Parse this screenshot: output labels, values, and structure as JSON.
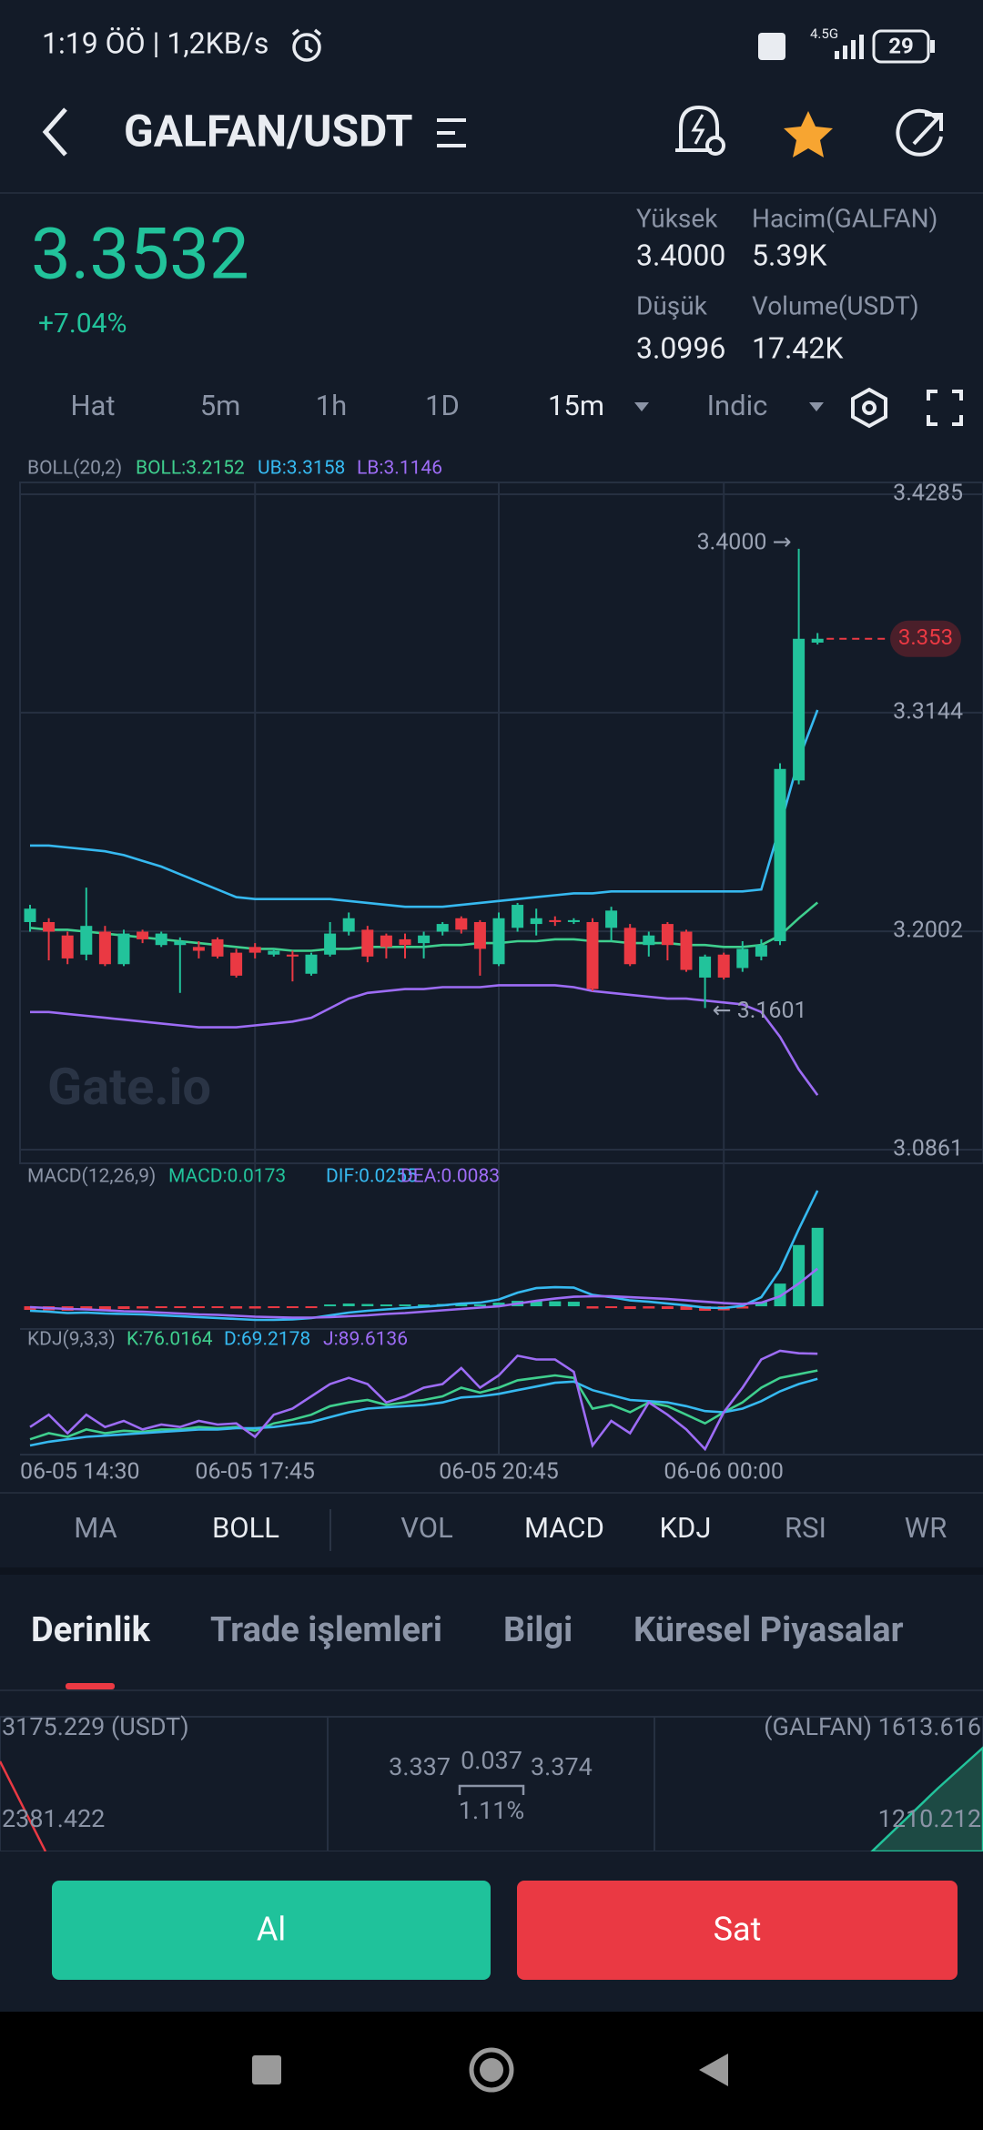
{
  "status_bar": {
    "time": "1:19 ÖÖ | 1,2KB/s",
    "network": "4.5G",
    "battery": "29"
  },
  "header": {
    "pair": "GALFAN/USDT"
  },
  "ticker": {
    "price": "3.3532",
    "change": "+7.04%",
    "high_label": "Yüksek",
    "high": "3.4000",
    "volume_base_label": "Hacim(GALFAN)",
    "volume_base": "5.39K",
    "low_label": "Düşük",
    "low": "3.0996",
    "volume_quote_label": "Volume(USDT)",
    "volume_quote": "17.42K"
  },
  "timeframes": [
    "Hat",
    "5m",
    "1h",
    "1D",
    "15m",
    "Indic"
  ],
  "chart_data": {
    "type": "candlestick",
    "categories": [
      "06-05 14:30",
      null,
      null,
      null,
      null,
      null,
      null,
      null,
      null,
      null,
      null,
      null,
      "06-05 17:45",
      null,
      null,
      null,
      null,
      null,
      null,
      null,
      null,
      null,
      null,
      null,
      null,
      "06-05 20:45",
      null,
      null,
      null,
      null,
      null,
      null,
      null,
      null,
      null,
      null,
      null,
      "06-06 00:00",
      null,
      null,
      null,
      null,
      null
    ],
    "open": [
      3.205,
      3.205,
      3.198,
      3.188,
      3.2,
      3.183,
      3.2,
      3.193,
      3.193,
      3.192,
      3.196,
      3.189,
      3.192,
      3.188,
      3.188,
      3.178,
      3.188,
      3.2,
      3.201,
      3.198,
      3.196,
      3.194,
      3.2,
      3.207,
      3.205,
      3.183,
      3.202,
      3.204,
      3.206,
      3.205,
      3.205,
      3.202,
      3.202,
      3.193,
      3.204,
      3.2,
      3.176,
      3.188,
      3.181,
      3.187,
      3.195,
      3.279,
      3.351
    ],
    "high": [
      3.214,
      3.207,
      3.2,
      3.223,
      3.203,
      3.201,
      3.201,
      3.2,
      3.197,
      3.195,
      3.197,
      3.191,
      3.194,
      3.191,
      3.19,
      3.189,
      3.205,
      3.21,
      3.203,
      3.199,
      3.199,
      3.2,
      3.205,
      3.208,
      3.206,
      3.21,
      3.215,
      3.212,
      3.208,
      3.207,
      3.207,
      3.213,
      3.204,
      3.2,
      3.205,
      3.201,
      3.188,
      3.189,
      3.195,
      3.196,
      3.288,
      3.4,
      3.356
    ],
    "low": [
      3.2,
      3.185,
      3.183,
      3.185,
      3.182,
      3.182,
      3.194,
      3.192,
      3.168,
      3.186,
      3.186,
      3.176,
      3.186,
      3.187,
      3.174,
      3.177,
      3.187,
      3.198,
      3.184,
      3.186,
      3.186,
      3.186,
      3.198,
      3.199,
      3.177,
      3.182,
      3.2,
      3.198,
      3.203,
      3.204,
      3.169,
      3.195,
      3.182,
      3.187,
      3.185,
      3.179,
      3.1601,
      3.175,
      3.179,
      3.185,
      3.193,
      3.277,
      3.35
    ],
    "close": [
      3.212,
      3.2,
      3.186,
      3.203,
      3.183,
      3.199,
      3.196,
      3.199,
      3.195,
      3.19,
      3.187,
      3.177,
      3.189,
      3.19,
      3.187,
      3.188,
      3.199,
      3.207,
      3.187,
      3.192,
      3.193,
      3.198,
      3.204,
      3.201,
      3.191,
      3.207,
      3.214,
      3.207,
      3.205,
      3.206,
      3.17,
      3.211,
      3.183,
      3.198,
      3.193,
      3.18,
      3.187,
      3.176,
      3.191,
      3.193,
      3.285,
      3.353,
      3.353
    ],
    "ylim": [
      3.0861,
      3.4285
    ],
    "yticks": [
      3.4285,
      3.3144,
      3.2002,
      3.0861
    ],
    "grid": true,
    "up_color": "#22c39b",
    "down_color": "#ea3943",
    "annotations": {
      "high": "3.4000 →",
      "low": "← 3.1601",
      "last_price": "3.353"
    },
    "watermark": "Gate.io",
    "boll": {
      "title": "BOLL(20,2)",
      "series": [
        {
          "legend": "BOLL:3.2152",
          "color": "#3fcf8e",
          "values": [
            3.202,
            3.201,
            3.201,
            3.2,
            3.199,
            3.198,
            3.197,
            3.196,
            3.195,
            3.194,
            3.193,
            3.192,
            3.191,
            3.191,
            3.19,
            3.19,
            3.191,
            3.191,
            3.192,
            3.192,
            3.192,
            3.192,
            3.193,
            3.193,
            3.194,
            3.194,
            3.195,
            3.195,
            3.196,
            3.196,
            3.195,
            3.195,
            3.194,
            3.194,
            3.194,
            3.193,
            3.193,
            3.192,
            3.192,
            3.193,
            3.198,
            3.207,
            3.2152
          ]
        },
        {
          "legend": "UB:3.3158",
          "color": "#36b9f0",
          "values": [
            3.245,
            3.245,
            3.244,
            3.243,
            3.242,
            3.24,
            3.237,
            3.234,
            3.23,
            3.226,
            3.222,
            3.218,
            3.217,
            3.217,
            3.217,
            3.217,
            3.217,
            3.216,
            3.215,
            3.214,
            3.213,
            3.213,
            3.213,
            3.214,
            3.215,
            3.216,
            3.217,
            3.218,
            3.219,
            3.22,
            3.22,
            3.221,
            3.221,
            3.221,
            3.221,
            3.221,
            3.221,
            3.221,
            3.221,
            3.222,
            3.255,
            3.29,
            3.3158
          ]
        },
        {
          "legend": "LB:3.1146",
          "color": "#9d6cf5",
          "values": [
            3.158,
            3.158,
            3.157,
            3.156,
            3.155,
            3.154,
            3.153,
            3.152,
            3.151,
            3.15,
            3.15,
            3.15,
            3.151,
            3.152,
            3.153,
            3.155,
            3.16,
            3.165,
            3.168,
            3.169,
            3.17,
            3.17,
            3.171,
            3.171,
            3.171,
            3.172,
            3.172,
            3.172,
            3.172,
            3.171,
            3.169,
            3.168,
            3.167,
            3.166,
            3.165,
            3.165,
            3.164,
            3.163,
            3.162,
            3.158,
            3.145,
            3.128,
            3.1146
          ]
        }
      ]
    },
    "macd": {
      "title": "MACD(12,26,9)",
      "histogram": {
        "legend": "MACD:0.0173",
        "values": [
          -0.0008,
          -0.0009,
          -0.001,
          -0.0008,
          -0.0007,
          -0.0006,
          -0.0005,
          -0.0004,
          -0.0003,
          -0.0003,
          -0.0004,
          -0.0005,
          -0.0005,
          -0.0004,
          -0.0003,
          -0.0002,
          0.0004,
          0.0006,
          0.0005,
          0.0004,
          0.0004,
          0.0004,
          0.0005,
          0.0006,
          0.0004,
          0.0008,
          0.0012,
          0.0012,
          0.0011,
          0.001,
          -0.0005,
          -0.0003,
          -0.0006,
          -0.0005,
          -0.0006,
          -0.0008,
          -0.001,
          -0.0009,
          -0.0005,
          0.001,
          0.005,
          0.0135,
          0.0173
        ]
      },
      "lines": [
        {
          "legend": "DIF:0.0255",
          "color": "#36b9f0",
          "values": [
            -0.001,
            -0.0012,
            -0.0015,
            -0.0014,
            -0.0016,
            -0.0017,
            -0.0018,
            -0.002,
            -0.0022,
            -0.0024,
            -0.0026,
            -0.0028,
            -0.003,
            -0.003,
            -0.0029,
            -0.0026,
            -0.002,
            -0.0014,
            -0.001,
            -0.0007,
            -0.0004,
            -0.0001,
            0.0002,
            0.0006,
            0.0008,
            0.0015,
            0.003,
            0.004,
            0.0042,
            0.0041,
            0.0025,
            0.002,
            0.0013,
            0.001,
            0.0006,
            0.0002,
            -0.0003,
            -0.0004,
            0.0001,
            0.002,
            0.008,
            0.017,
            0.0255
          ]
        },
        {
          "legend": "DEA:0.0083",
          "color": "#9d6cf5",
          "values": [
            -0.0002,
            -0.0004,
            -0.0006,
            -0.0007,
            -0.0009,
            -0.0011,
            -0.0012,
            -0.0014,
            -0.0016,
            -0.0018,
            -0.0019,
            -0.0021,
            -0.0023,
            -0.0024,
            -0.0025,
            -0.0025,
            -0.0024,
            -0.0022,
            -0.002,
            -0.0017,
            -0.0015,
            -0.0012,
            -0.0009,
            -0.0006,
            -0.0003,
            0.0,
            0.0006,
            0.0012,
            0.0017,
            0.0021,
            0.0022,
            0.0022,
            0.002,
            0.0018,
            0.0016,
            0.0013,
            0.001,
            0.0007,
            0.0005,
            0.0008,
            0.0022,
            0.005,
            0.0083
          ]
        }
      ]
    },
    "kdj": {
      "title": "KDJ(9,3,3)",
      "series": [
        {
          "legend": "K:76.0164",
          "color": "#3fcf8e",
          "values": [
            20,
            25,
            22,
            28,
            25,
            27,
            26,
            28,
            28,
            30,
            29,
            30,
            27,
            33,
            36,
            40,
            47,
            50,
            52,
            48,
            50,
            52,
            55,
            62,
            58,
            62,
            68,
            70,
            72,
            70,
            45,
            48,
            42,
            50,
            47,
            40,
            33,
            42,
            50,
            62,
            70,
            73,
            76.0164
          ]
        },
        {
          "legend": "D:69.2178",
          "color": "#36b9f0",
          "values": [
            15,
            18,
            20,
            22,
            23,
            24,
            25,
            26,
            27,
            28,
            28,
            29,
            29,
            30,
            32,
            34,
            38,
            42,
            45,
            46,
            47,
            48,
            50,
            54,
            55,
            57,
            60,
            63,
            66,
            67,
            60,
            56,
            52,
            51,
            50,
            47,
            43,
            42,
            45,
            51,
            59,
            65,
            69.2178
          ]
        },
        {
          "legend": "J:89.6136",
          "color": "#9d6cf5",
          "values": [
            30,
            40,
            25,
            40,
            30,
            35,
            28,
            32,
            30,
            35,
            32,
            33,
            22,
            40,
            45,
            55,
            65,
            70,
            65,
            50,
            55,
            62,
            65,
            78,
            62,
            72,
            88,
            85,
            85,
            75,
            15,
            35,
            25,
            50,
            40,
            28,
            12,
            42,
            62,
            85,
            92,
            90,
            89.6136
          ]
        }
      ]
    }
  },
  "indicator_tabs": [
    "MA",
    "BOLL",
    "VOL",
    "MACD",
    "KDJ",
    "RSI",
    "WR"
  ],
  "tabs": [
    "Derinlik",
    "Trade işlemleri",
    "Bilgi",
    "Küresel Piyasalar"
  ],
  "depth": {
    "bid_total": "3175.229 (USDT)",
    "bid_mid": "2381.422",
    "ask_total": "(GALFAN) 1613.616",
    "ask_mid": "1210.212",
    "bid_price": "3.337",
    "spread": "0.037",
    "ask_price": "3.374",
    "spread_pct": "1.11%"
  },
  "actions": {
    "buy": "Al",
    "sell": "Sat"
  }
}
